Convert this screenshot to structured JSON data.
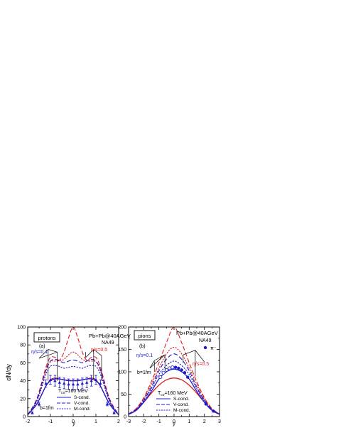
{
  "shared": {
    "ylabel": "dN/dy",
    "xlabel": "y",
    "tc_label": "T",
    "tc_sub": "co",
    "tc_value": "=160 MeV",
    "legend_entries": [
      {
        "label": "S-cond.",
        "style": "solid"
      },
      {
        "label": "V-cond.",
        "style": "dash"
      },
      {
        "label": "M-cond.",
        "style": "shortdash"
      }
    ],
    "colors": {
      "blue": "#1c1ccc",
      "red": "#e21b1b",
      "black": "#000000"
    }
  },
  "chart_data": [
    {
      "type": "line",
      "panel": "protons",
      "title": "protons",
      "panel_label": "(a)",
      "system": "Pb+Pb@40AGeV",
      "experiment": "NA49",
      "impact": "b=1fm",
      "eta_low": "η/s=0.1",
      "eta_high": "η/s=0.5",
      "xlim": [
        -2,
        2
      ],
      "ylim": [
        0,
        100
      ],
      "xticks": [
        "-2",
        "-1",
        "0",
        "1",
        "2"
      ],
      "yticks": [
        "0",
        "20",
        "40",
        "60",
        "80",
        "100"
      ],
      "y": [
        -2.0,
        -1.6,
        -1.2,
        -1.0,
        -0.8,
        -0.6,
        -0.4,
        -0.2,
        0.0,
        0.2,
        0.4,
        0.6,
        0.8,
        1.0,
        1.2,
        1.6,
        2.0
      ],
      "series": [
        {
          "color": "red",
          "style": "solid",
          "values": [
            2,
            14,
            34,
            41,
            43,
            42,
            41,
            40.5,
            40,
            40.5,
            41,
            42,
            43,
            41,
            34,
            14,
            2
          ]
        },
        {
          "color": "red",
          "style": "dash",
          "values": [
            2,
            20,
            55,
            66,
            66,
            63,
            72,
            88,
            100,
            88,
            72,
            63,
            66,
            66,
            55,
            20,
            2
          ]
        },
        {
          "color": "red",
          "style": "shortdash",
          "values": [
            2,
            18,
            51,
            61,
            62,
            62,
            64,
            69,
            72,
            69,
            64,
            62,
            62,
            61,
            51,
            18,
            2
          ]
        },
        {
          "color": "blue",
          "style": "solid",
          "values": [
            2,
            14,
            34,
            40,
            42,
            42,
            41,
            40,
            40,
            40,
            41,
            42,
            42,
            40,
            34,
            14,
            2
          ]
        },
        {
          "color": "blue",
          "style": "dash",
          "values": [
            2,
            19,
            52,
            62,
            64,
            62,
            60,
            62,
            63,
            62,
            60,
            62,
            64,
            62,
            52,
            19,
            2
          ]
        },
        {
          "color": "blue",
          "style": "shortdash",
          "values": [
            2,
            17,
            47,
            56,
            57,
            56,
            54,
            55,
            56,
            55,
            54,
            56,
            57,
            56,
            47,
            17,
            2
          ]
        }
      ],
      "data_points": {
        "x": [
          -1.8,
          -1.5,
          -1.2,
          -1.0,
          -0.8,
          -0.6,
          -0.4,
          -0.2,
          0.0,
          0.2,
          0.4,
          0.6,
          0.8,
          1.0,
          1.2,
          1.5,
          1.8
        ],
        "y": [
          4,
          14,
          37,
          41,
          40,
          38,
          37,
          36,
          36,
          36,
          37,
          38,
          40,
          41,
          37,
          14,
          4
        ],
        "err": [
          1,
          2,
          4,
          5,
          6,
          6,
          6,
          6,
          6,
          6,
          6,
          6,
          6,
          5,
          4,
          2,
          1
        ]
      }
    },
    {
      "type": "line",
      "panel": "pions",
      "title": "pions",
      "panel_label": "(b)",
      "system": "Pb+Pb@40AGeV",
      "experiment": "NA49",
      "impact": "b=1fm",
      "eta_low": "η/s=0.1",
      "eta_high": "η/s=0.5",
      "data_legend": "π⁻",
      "xlim": [
        -3,
        3
      ],
      "ylim": [
        0,
        200
      ],
      "xticks": [
        "-3",
        "-2",
        "-1",
        "0",
        "1",
        "2",
        "3"
      ],
      "yticks": [
        "0",
        "50",
        "100",
        "150",
        "200"
      ],
      "y": [
        -3.0,
        -2.5,
        -2.0,
        -1.5,
        -1.0,
        -0.5,
        0.0,
        0.5,
        1.0,
        1.5,
        2.0,
        2.5,
        3.0
      ],
      "series": [
        {
          "color": "red",
          "style": "solid",
          "values": [
            5,
            14,
            32,
            52,
            70,
            82,
            86,
            82,
            70,
            52,
            32,
            14,
            5
          ]
        },
        {
          "color": "red",
          "style": "dash",
          "values": [
            6,
            18,
            42,
            78,
            120,
            165,
            200,
            165,
            120,
            78,
            42,
            18,
            6
          ]
        },
        {
          "color": "red",
          "style": "shortdash",
          "values": [
            6,
            17,
            40,
            72,
            108,
            140,
            155,
            140,
            108,
            72,
            40,
            17,
            6
          ]
        },
        {
          "color": "blue",
          "style": "solid",
          "values": [
            5,
            14,
            32,
            56,
            84,
            100,
            106,
            100,
            84,
            56,
            32,
            14,
            5
          ]
        },
        {
          "color": "blue",
          "style": "dash",
          "values": [
            6,
            16,
            37,
            66,
            102,
            128,
            140,
            128,
            102,
            66,
            37,
            16,
            6
          ]
        },
        {
          "color": "blue",
          "style": "shortdash",
          "values": [
            5,
            15,
            35,
            62,
            94,
            114,
            124,
            114,
            94,
            62,
            35,
            15,
            5
          ]
        }
      ],
      "data_filled": {
        "x": [
          0.1,
          0.3,
          0.5,
          0.7,
          0.9,
          2.1,
          2.6
        ],
        "y": [
          110,
          108,
          104,
          98,
          88,
          28,
          12
        ]
      },
      "data_open": {
        "x": [
          -0.9,
          -0.7,
          -0.5,
          -0.3,
          -0.1
        ],
        "y": [
          88,
          98,
          104,
          108,
          110
        ]
      }
    }
  ]
}
